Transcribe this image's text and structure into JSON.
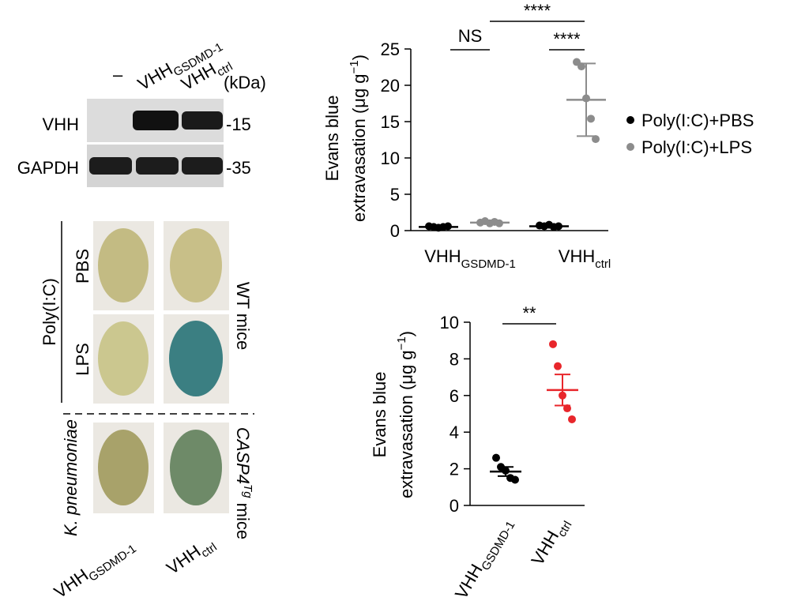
{
  "blot": {
    "lanes": [
      "–",
      {
        "main": "VHH",
        "sub": "GSDMD-1"
      },
      {
        "main": "VHH",
        "sub": "ctrl"
      }
    ],
    "unit": "(kDa)",
    "rows": [
      {
        "label": "VHH",
        "marker": "-15"
      },
      {
        "label": "GAPDH",
        "marker": "-35"
      }
    ]
  },
  "brains": {
    "treatment": "Poly(I:C)",
    "conditions": [
      "PBS",
      "LPS"
    ],
    "infection": "K. pneumoniae",
    "groups": [
      {
        "main": "WT mice"
      },
      {
        "main": "CASP4",
        "sup": "Tg",
        "end": " mice"
      }
    ],
    "columns": [
      {
        "main": "VHH",
        "sub": "GSDMD-1"
      },
      {
        "main": "VHH",
        "sub": "ctrl"
      }
    ]
  },
  "chart_data": [
    {
      "type": "dot",
      "y_label": {
        "line1": "Evans blue",
        "line2": "extravasation (μg g",
        "sup": "−1",
        "end": ")"
      },
      "categories": [
        {
          "main": "VHH",
          "sub": "GSDMD-1"
        },
        {
          "main": "VHH",
          "sub": "ctrl"
        }
      ],
      "series": [
        {
          "name": "Poly(I:C)+PBS",
          "color": "#000000",
          "values": [
            [
              0.6,
              0.5,
              0.4,
              0.5,
              0.6
            ],
            [
              0.7,
              0.6,
              0.8,
              0.5,
              0.6
            ]
          ],
          "mean": [
            0.5,
            0.6
          ],
          "error": [
            0.1,
            0.1
          ]
        },
        {
          "name": "Poly(I:C)+LPS",
          "color": "#8c8c8c",
          "values": [
            [
              1.1,
              1.3,
              1.0,
              1.2,
              1.0
            ],
            [
              23.2,
              22.6,
              18.2,
              15.4,
              12.6
            ]
          ],
          "mean": [
            1.1,
            18
          ],
          "error": [
            0.15,
            5
          ]
        }
      ],
      "ylim": [
        0,
        25
      ],
      "yticks": [
        0,
        5,
        10,
        15,
        20,
        25
      ],
      "annotations": [
        "NS",
        "****",
        "****"
      ],
      "legend": "right"
    },
    {
      "type": "dot",
      "y_label": {
        "line1": "Evans blue",
        "line2": "extravasation (μg g",
        "sup": "−1",
        "end": ")"
      },
      "categories": [
        {
          "main": "VHH",
          "sub": "GSDMD-1"
        },
        {
          "main": "VHH",
          "sub": "ctrl"
        }
      ],
      "series": [
        {
          "colors": [
            "#000000",
            "#e8262b"
          ],
          "values": [
            [
              2.6,
              2.1,
              1.9,
              1.5,
              1.4
            ],
            [
              8.8,
              7.6,
              6.0,
              5.3,
              4.7
            ]
          ],
          "mean": [
            1.85,
            6.3
          ],
          "error": [
            0.25,
            0.85
          ]
        }
      ],
      "ylim": [
        0,
        10
      ],
      "yticks": [
        0,
        2,
        4,
        6,
        8,
        10
      ],
      "annotations": [
        "**"
      ]
    }
  ]
}
